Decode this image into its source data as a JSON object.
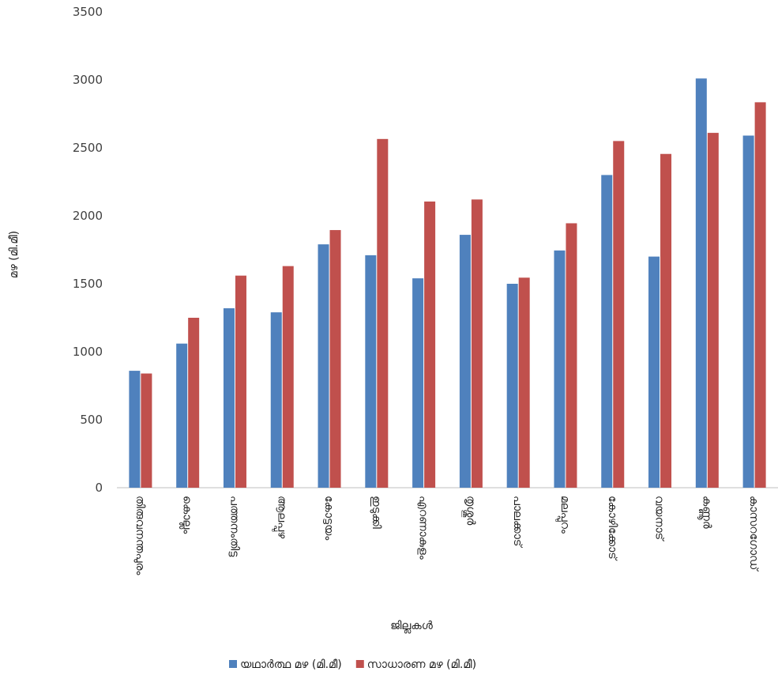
{
  "chart_data": {
    "type": "bar",
    "title": "",
    "xlabel": "ജില്ലകൾ",
    "ylabel": "മഴ (മി.മീ)",
    "ylim": [
      0,
      3500
    ],
    "yticks": [
      0,
      500,
      1000,
      1500,
      2000,
      2500,
      3000,
      3500
    ],
    "grid": false,
    "legend_position": "bottom",
    "categories": [
      "തിരുവനന്തപുരം",
      "കൊല്ലം",
      "പത്തനംതിട്ട",
      "ആലപ്പുഴ",
      "കോട്ടയം",
      "ഇടുക്കി",
      "എറണാകുളം",
      "തൃശ്ശൂർ",
      "പാലക്കാട്",
      "മലപ്പുറം",
      "കോഴിക്കോട്",
      "വയനാട്",
      "കണ്ണൂർ",
      "കാസറഗോഡ്"
    ],
    "series": [
      {
        "name": "യഥാർത്ഥ മഴ (മി.മീ)",
        "color": "#4f81bd",
        "values": [
          860,
          1060,
          1320,
          1290,
          1790,
          1710,
          1540,
          1860,
          1500,
          1745,
          2300,
          1700,
          3010,
          2590
        ]
      },
      {
        "name": "സാധാരണ മഴ (മി.മീ)",
        "color": "#c0504d",
        "values": [
          840,
          1250,
          1560,
          1630,
          1895,
          2565,
          2105,
          2120,
          1545,
          1945,
          2550,
          2455,
          2610,
          2835
        ]
      }
    ]
  }
}
